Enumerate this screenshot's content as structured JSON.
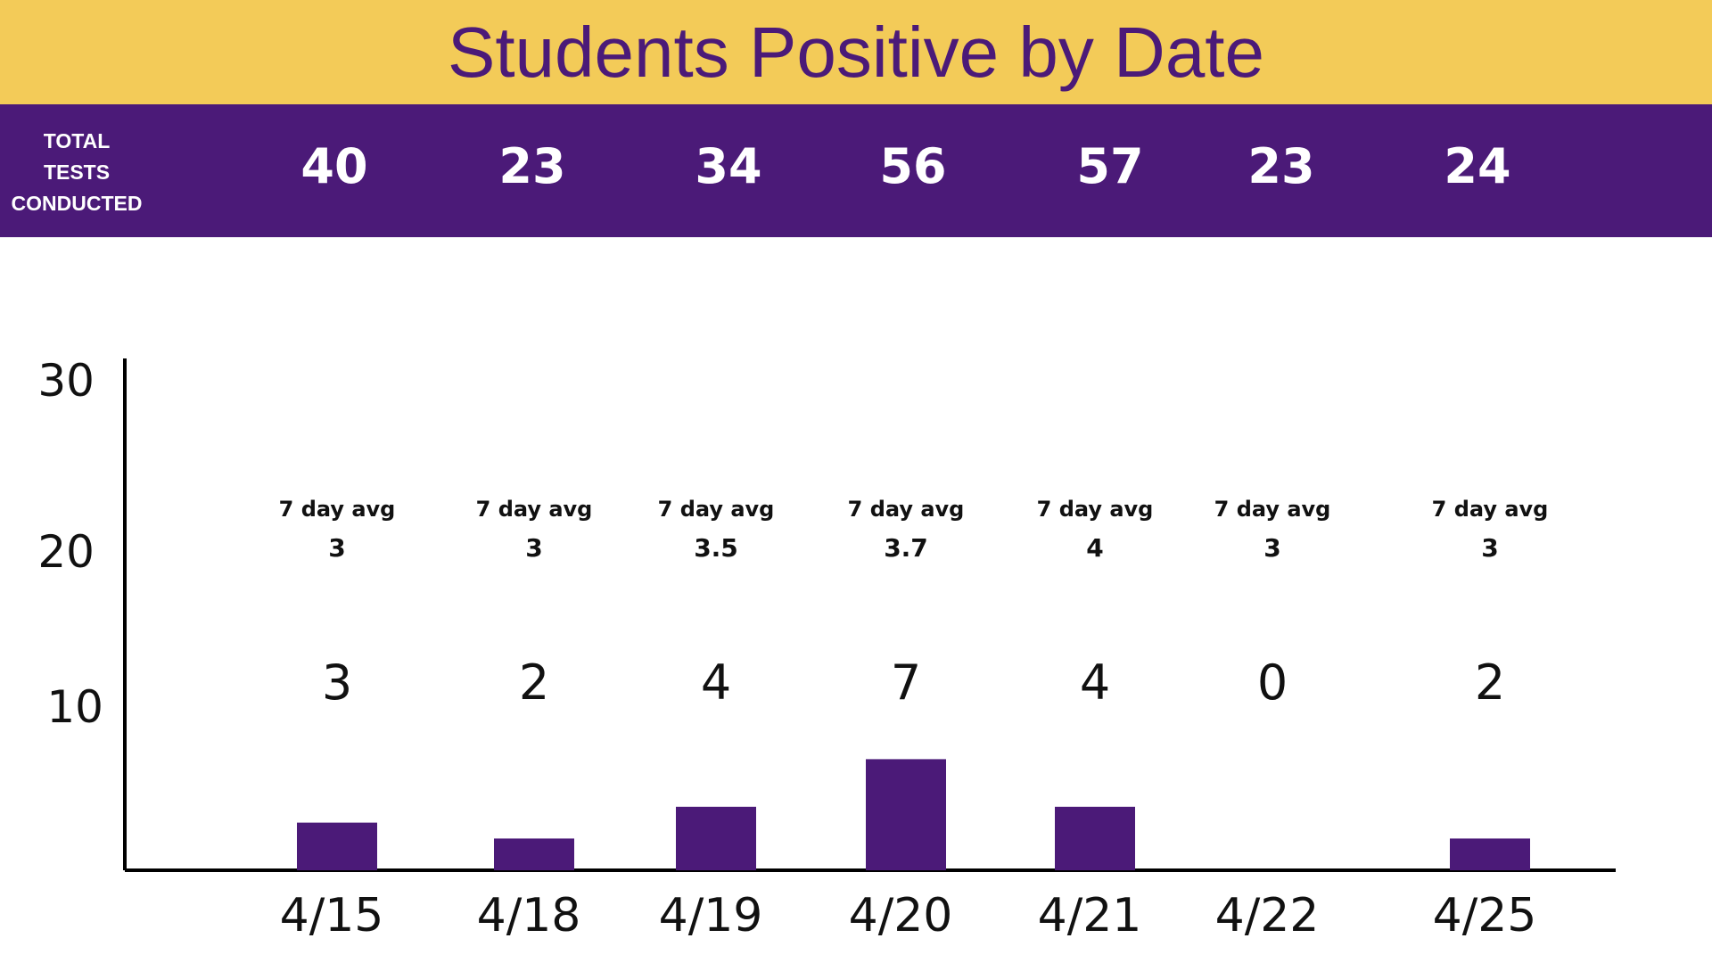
{
  "title": "Students Positive by Date",
  "tests_label": [
    "TOTAL",
    "TESTS",
    "CONDUCTED"
  ],
  "colors": {
    "title_band": "#f3cb58",
    "purple": "#4b1a78",
    "axis": "#000000",
    "text": "#111111"
  },
  "chart_data": {
    "type": "bar",
    "title": "Students Positive by Date",
    "categories": [
      "4/15",
      "4/18",
      "4/19",
      "4/20",
      "4/21",
      "4/22",
      "4/25"
    ],
    "values": [
      3,
      2,
      4,
      7,
      4,
      0,
      2
    ],
    "tests_conducted": [
      40,
      23,
      34,
      56,
      57,
      23,
      24
    ],
    "seven_day_avg_label": "7 day avg",
    "seven_day_avg": [
      "3",
      "3",
      "3.5",
      "3.7",
      "4",
      "3",
      "3"
    ],
    "y_ticks": [
      "10",
      "20",
      "30"
    ],
    "grid": false,
    "legend": "none"
  }
}
